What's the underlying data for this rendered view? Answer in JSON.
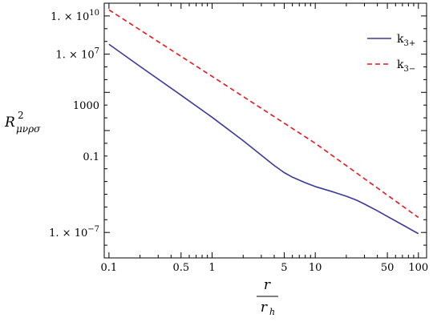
{
  "chart_data": {
    "type": "line",
    "x_scale": "log",
    "y_scale": "log",
    "xlim": [
      0.09,
      120
    ],
    "ylim": [
      1e-09,
      100000000000.0
    ],
    "grid": false,
    "legend_position": "top-right",
    "xlabel": {
      "numerator": "r",
      "denominator": "r",
      "denominator_sub": "h"
    },
    "ylabel": {
      "base": "R",
      "sup": "2",
      "sub": "μνρσ"
    },
    "x_ticks": [
      {
        "value": 0.1,
        "label": "0.1"
      },
      {
        "value": 0.5,
        "label": "0.5"
      },
      {
        "value": 1,
        "label": "1"
      },
      {
        "value": 5,
        "label": "5"
      },
      {
        "value": 10,
        "label": "10"
      },
      {
        "value": 50,
        "label": "50"
      },
      {
        "value": 100,
        "label": "100"
      }
    ],
    "y_ticks": [
      {
        "value": 10000000000.0,
        "label": "1. × 10",
        "exp": "10"
      },
      {
        "value": 10000000.0,
        "label": "1. × 10",
        "exp": "7"
      },
      {
        "value": 1000,
        "label": "1000",
        "exp": ""
      },
      {
        "value": 0.1,
        "label": "0.1",
        "exp": ""
      },
      {
        "value": 1e-07,
        "label": "1. × 10",
        "exp": "−7"
      }
    ],
    "series": [
      {
        "name": "k",
        "name_sub": "3+",
        "color": "#3a3a99",
        "dash": "solid",
        "x": [
          0.1,
          0.2,
          0.5,
          1,
          2,
          4,
          5,
          6,
          8,
          10,
          15,
          20,
          25,
          30,
          40,
          50,
          70,
          100
        ],
        "y": [
          60000000.0,
          1100000.0,
          6000.0,
          110.0,
          1.6,
          0.018,
          0.005,
          0.0022,
          0.0008,
          0.0004,
          0.00015,
          7e-05,
          3.5e-05,
          1.7e-05,
          5e-06,
          1.8e-06,
          4e-07,
          8e-08
        ]
      },
      {
        "name": "k",
        "name_sub": "3−",
        "color": "#e8161c",
        "dash": "dashed",
        "x": [
          0.1,
          1,
          10,
          100
        ],
        "y": [
          30000000000.0,
          180000.0,
          1.0,
          1.5e-06
        ]
      }
    ]
  }
}
